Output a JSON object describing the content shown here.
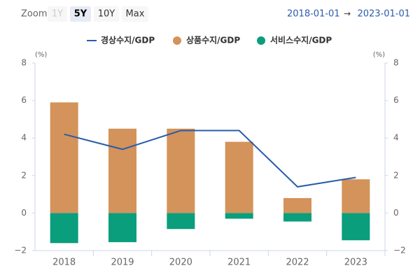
{
  "range_selector": {
    "label": "Zoom",
    "buttons": [
      "1Y",
      "5Y",
      "10Y",
      "Max"
    ],
    "selected": 1,
    "from": "2018-01-01",
    "arrow": "→",
    "to": "2023-01-01"
  },
  "chart_data": {
    "type": "bar",
    "categories": [
      "2018",
      "2019",
      "2020",
      "2021",
      "2022",
      "2023"
    ],
    "series": [
      {
        "name": "경상수지/GDP",
        "type": "line",
        "color": "#2a5caa",
        "values": [
          4.2,
          3.4,
          4.4,
          4.4,
          1.4,
          1.9
        ]
      },
      {
        "name": "상품수지/GDP",
        "type": "bar",
        "color": "#d4935a",
        "values": [
          5.9,
          4.5,
          4.5,
          3.8,
          0.8,
          1.8
        ]
      },
      {
        "name": "서비스수지/GDP",
        "type": "bar",
        "color": "#0a9e7d",
        "values": [
          -1.6,
          -1.55,
          -0.85,
          -0.3,
          -0.45,
          -1.45
        ]
      }
    ],
    "y_unit": "(%)",
    "y2_unit": "(%)",
    "ylim": [
      -2,
      8
    ],
    "yticks": [
      {
        "value": -2,
        "label": "−2"
      },
      0,
      2,
      4,
      6,
      8
    ],
    "y2lim": [
      -2,
      8
    ],
    "y2ticks": [
      {
        "value": -2,
        "label": "−2"
      },
      0,
      2,
      4,
      6,
      8
    ],
    "grid": false,
    "legend": "top"
  }
}
